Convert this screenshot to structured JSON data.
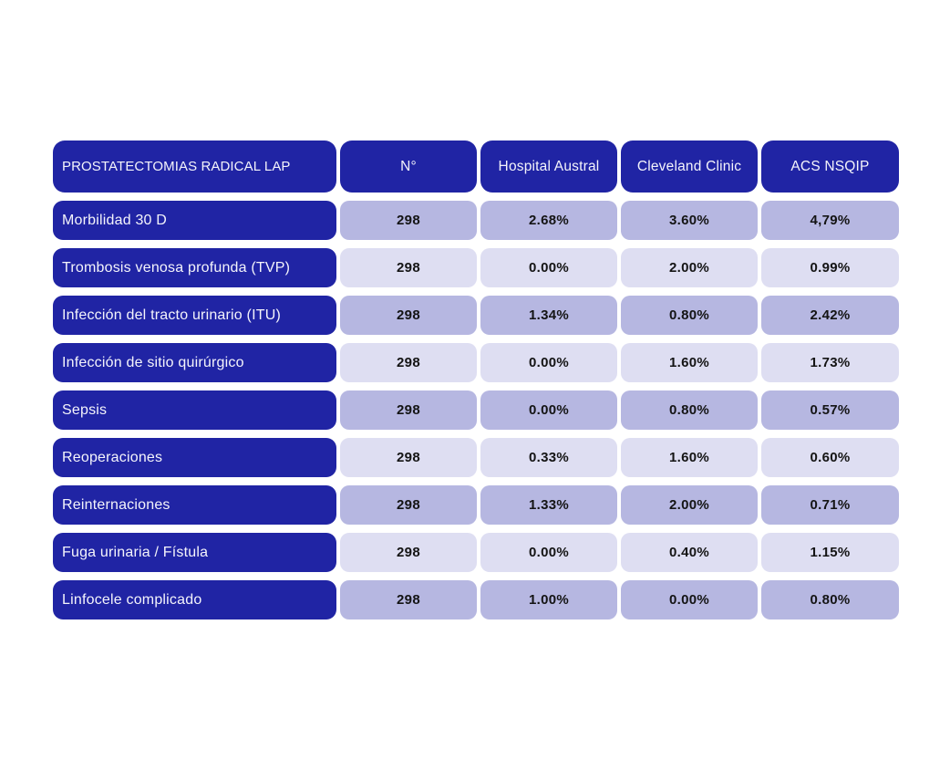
{
  "colors": {
    "header_bg": "#2024A4",
    "cell_dark": "#B6B7E1",
    "cell_light": "#DEDEF2",
    "header_text": "#F4F4FB",
    "cell_text": "#141414",
    "page_bg": "#FFFFFF"
  },
  "chart_data": {
    "type": "table",
    "title": "PROSTATECTOMIAS RADICAL LAP",
    "columns": [
      "PROSTATECTOMIAS RADICAL LAP",
      "N°",
      "Hospital Austral",
      "Cleveland Clinic",
      "ACS NSQIP"
    ],
    "rows": [
      {
        "label": "Morbilidad 30 D",
        "n": "298",
        "hospital_austral": "2.68%",
        "cleveland_clinic": "3.60%",
        "acs_nsqip": "4,79%"
      },
      {
        "label": "Trombosis venosa profunda (TVP)",
        "n": "298",
        "hospital_austral": "0.00%",
        "cleveland_clinic": "2.00%",
        "acs_nsqip": "0.99%"
      },
      {
        "label": "Infección del tracto urinario (ITU)",
        "n": "298",
        "hospital_austral": "1.34%",
        "cleveland_clinic": "0.80%",
        "acs_nsqip": "2.42%"
      },
      {
        "label": "Infección de sitio quirúrgico",
        "n": "298",
        "hospital_austral": "0.00%",
        "cleveland_clinic": "1.60%",
        "acs_nsqip": "1.73%"
      },
      {
        "label": "Sepsis",
        "n": "298",
        "hospital_austral": "0.00%",
        "cleveland_clinic": "0.80%",
        "acs_nsqip": "0.57%"
      },
      {
        "label": "Reoperaciones",
        "n": "298",
        "hospital_austral": "0.33%",
        "cleveland_clinic": "1.60%",
        "acs_nsqip": "0.60%"
      },
      {
        "label": "Reinternaciones",
        "n": "298",
        "hospital_austral": "1.33%",
        "cleveland_clinic": "2.00%",
        "acs_nsqip": "0.71%"
      },
      {
        "label": "Fuga urinaria / Fístula",
        "n": "298",
        "hospital_austral": "0.00%",
        "cleveland_clinic": "0.40%",
        "acs_nsqip": "1.15%"
      },
      {
        "label": "Linfocele complicado",
        "n": "298",
        "hospital_austral": "1.00%",
        "cleveland_clinic": "0.00%",
        "acs_nsqip": "0.80%"
      }
    ],
    "layout": {
      "row_stripes": [
        "dark",
        "light"
      ],
      "grid": false,
      "legend": "none"
    }
  }
}
